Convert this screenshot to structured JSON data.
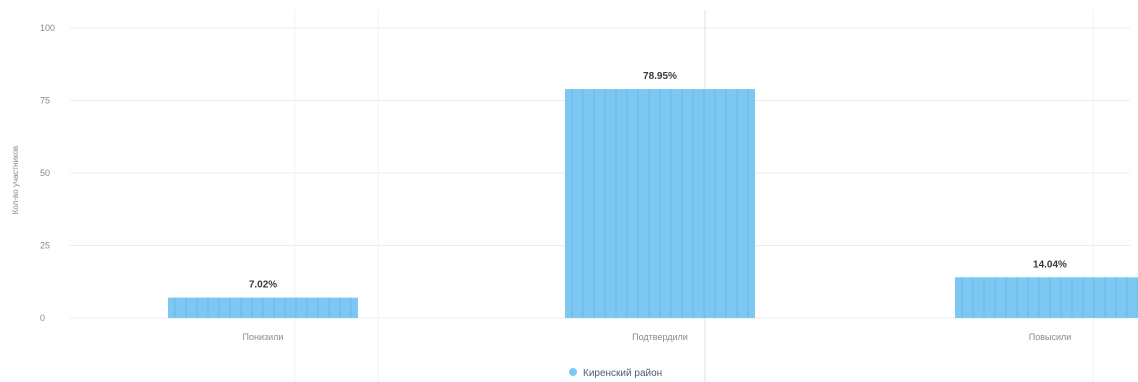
{
  "chart_data": {
    "type": "bar",
    "title": "",
    "xlabel": "",
    "ylabel": "Кол-во участников",
    "ylim": [
      0,
      100
    ],
    "yticks": [
      0,
      25,
      50,
      75,
      100
    ],
    "categories": [
      "Понизили",
      "Подтвердили",
      "Повысили"
    ],
    "series": [
      {
        "name": "Киренский район",
        "values": [
          7.02,
          78.95,
          14.04
        ],
        "labels": [
          "7.02%",
          "78.95%",
          "14.04%"
        ]
      }
    ],
    "grid": true,
    "legend": "bottom"
  },
  "colors": {
    "bar": "#7cc8f2",
    "bar_stripe": "#5fb2e8",
    "grid": "#ececec",
    "axis": "#d6d6d6",
    "legend_marker": "#7cc8f2"
  }
}
